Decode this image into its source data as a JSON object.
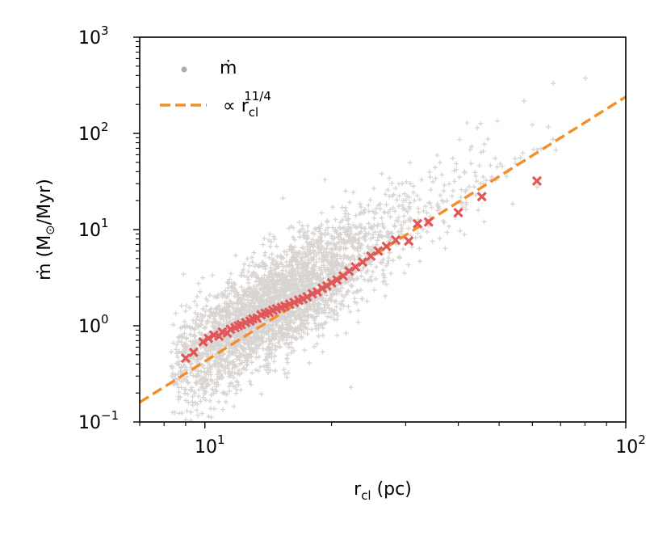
{
  "chart_data": {
    "type": "scatter",
    "title": "",
    "xlabel": {
      "main": "r",
      "sub": "cl",
      "rest": " (pc)"
    },
    "ylabel": {
      "main": "ṁ (M",
      "sub": "⊙",
      "rest": "/Myr)"
    },
    "x_scale": "log",
    "y_scale": "log",
    "xlim": [
      7.0,
      100
    ],
    "ylim": [
      0.1,
      1000
    ],
    "x_ticks": [
      {
        "value": 10,
        "base": "10",
        "exp": "1"
      },
      {
        "value": 100,
        "base": "10",
        "exp": "2"
      }
    ],
    "y_ticks": [
      {
        "value": 0.1,
        "base": "10",
        "exp": "−1"
      },
      {
        "value": 1,
        "base": "10",
        "exp": "0"
      },
      {
        "value": 10,
        "base": "10",
        "exp": "1"
      },
      {
        "value": 100,
        "base": "10",
        "exp": "2"
      },
      {
        "value": 1000,
        "base": "10",
        "exp": "3"
      }
    ],
    "grid": false,
    "legend_position": "top-left",
    "legend": [
      {
        "label": "ṁ",
        "sup": "",
        "marker": "dot",
        "color": "#b0aaa8"
      },
      {
        "label": "∝ r",
        "sub": "cl",
        "sup": "11/4",
        "marker": "dashed-line",
        "color": "#f28e2b"
      }
    ],
    "series": [
      {
        "name": "ṁ",
        "kind": "scatter-cloud",
        "color": "#b8b0ad",
        "marker": "plus",
        "approx_points": 3500,
        "description": "scatter around the power-law trend, spread roughly ±0.4 dex"
      },
      {
        "name": "",
        "kind": "binned-median",
        "color": "#e05759",
        "marker": "x",
        "x": [
          9.0,
          9.4,
          9.9,
          10.2,
          10.5,
          10.8,
          11.0,
          11.3,
          11.5,
          11.8,
          12.0,
          12.2,
          12.5,
          12.8,
          13.0,
          13.3,
          13.6,
          13.9,
          14.2,
          14.5,
          14.8,
          15.2,
          15.5,
          15.9,
          16.3,
          16.7,
          17.1,
          17.5,
          18.0,
          18.5,
          19.0,
          19.5,
          20.0,
          20.6,
          21.3,
          22.0,
          22.8,
          23.7,
          24.8,
          25.8,
          27.0,
          28.4,
          30.5,
          32.0,
          34.0,
          40.0,
          45.5,
          61.5
        ],
        "y": [
          0.46,
          0.53,
          0.68,
          0.74,
          0.8,
          0.78,
          0.86,
          0.84,
          0.92,
          0.96,
          1.0,
          1.03,
          1.08,
          1.12,
          1.18,
          1.2,
          1.3,
          1.35,
          1.38,
          1.45,
          1.5,
          1.55,
          1.6,
          1.68,
          1.75,
          1.85,
          1.9,
          2.0,
          2.15,
          2.25,
          2.45,
          2.6,
          2.8,
          3.0,
          3.3,
          3.7,
          4.1,
          4.6,
          5.3,
          6.0,
          6.7,
          7.8,
          7.6,
          11.5,
          12.0,
          15.0,
          22.0,
          32.0
        ]
      },
      {
        "name": "∝ r_cl^11/4",
        "kind": "power-law-line",
        "color": "#f28e2b",
        "style": "dashed",
        "exponent": 2.75,
        "x": [
          7.0,
          100
        ],
        "y": [
          0.16,
          240
        ]
      }
    ]
  }
}
